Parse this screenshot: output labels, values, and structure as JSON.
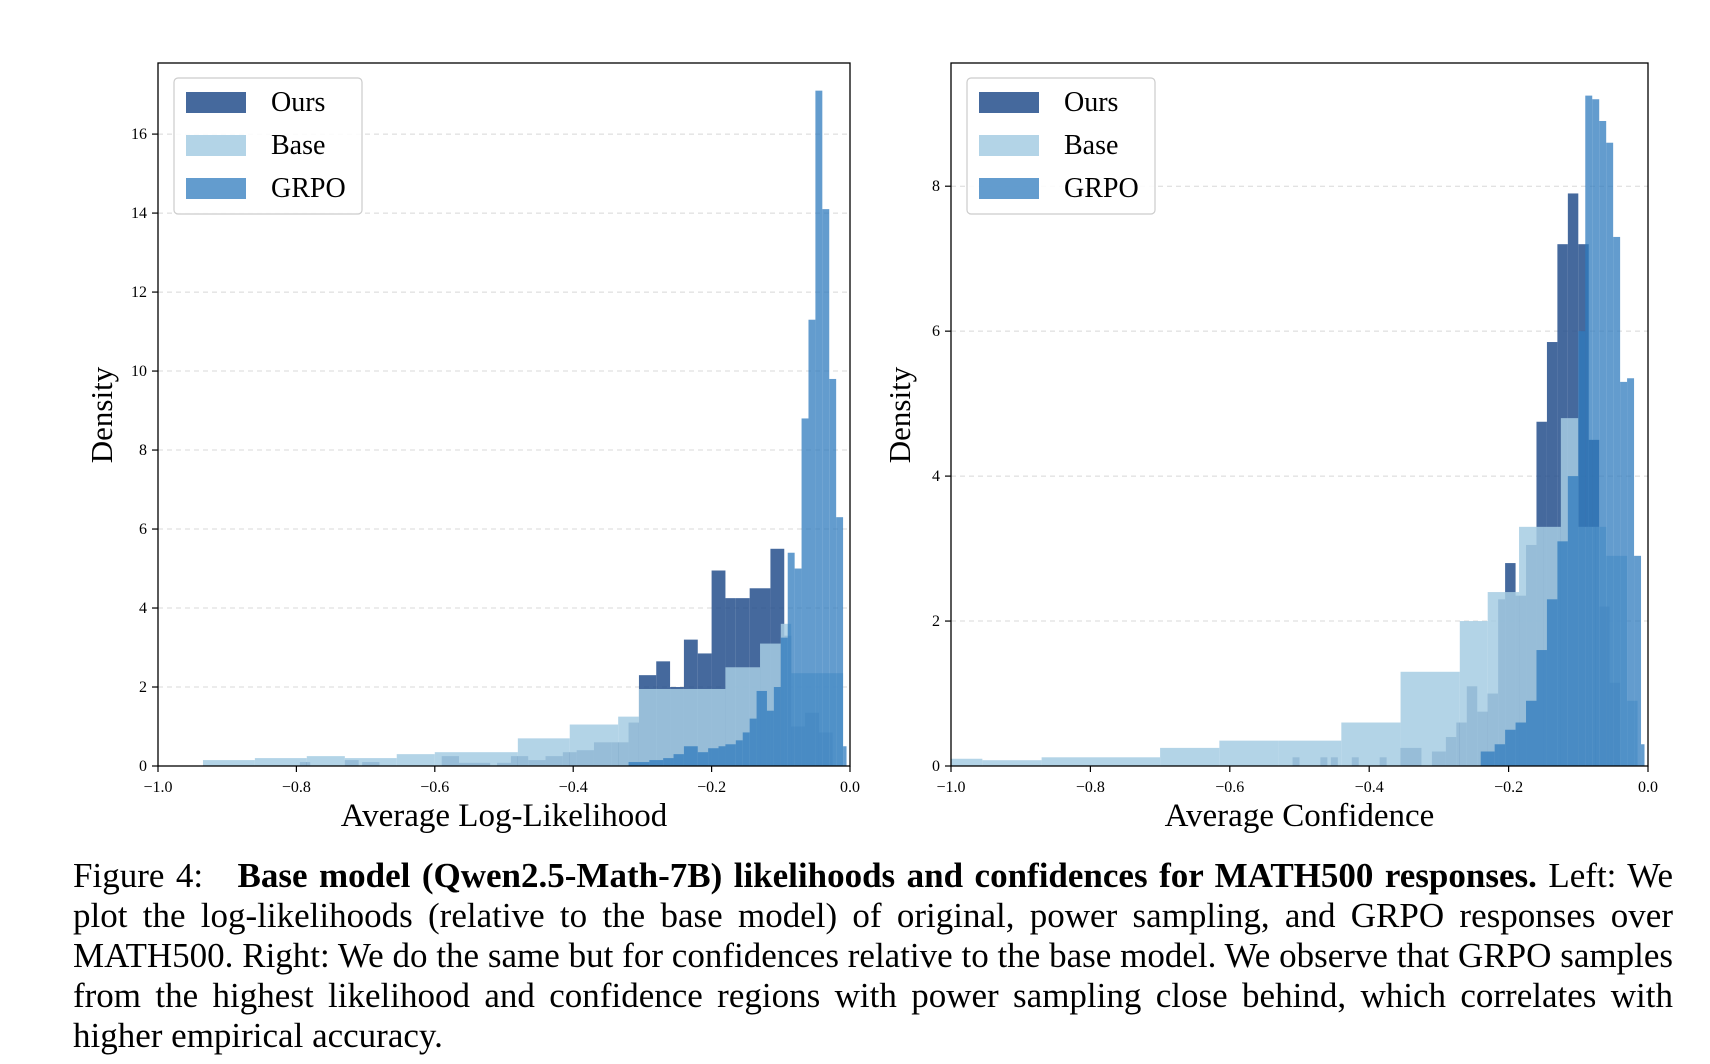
{
  "chart_data": [
    {
      "type": "histogram",
      "xlabel": "Average Log-Likelihood",
      "ylabel": "Density",
      "xlim": [
        -1.0,
        0.0
      ],
      "ylim": [
        0,
        17.8
      ],
      "xticks": [
        -1.0,
        -0.8,
        -0.6,
        -0.4,
        -0.2,
        0.0
      ],
      "xtick_labels": [
        "−1.0",
        "−0.8",
        "−0.6",
        "−0.4",
        "−0.2",
        "0.0"
      ],
      "yticks": [
        0,
        2,
        4,
        6,
        8,
        10,
        12,
        14,
        16
      ],
      "ytick_labels": [
        "0",
        "2",
        "4",
        "6",
        "8",
        "10",
        "12",
        "14",
        "16"
      ],
      "grid": "y-dashed",
      "legend": "top-left",
      "series": [
        {
          "name": "Ours",
          "color": "#254f8c",
          "opacity": 0.85,
          "bins": [
            [
              -0.795,
              -0.78,
              0.1
            ],
            [
              -0.73,
              -0.71,
              0.15
            ],
            [
              -0.705,
              -0.68,
              0.1
            ],
            [
              -0.59,
              -0.565,
              0.25
            ],
            [
              -0.565,
              -0.52,
              0.08
            ],
            [
              -0.51,
              -0.49,
              0.08
            ],
            [
              -0.49,
              -0.465,
              0.25
            ],
            [
              -0.465,
              -0.44,
              0.15
            ],
            [
              -0.44,
              -0.415,
              0.25
            ],
            [
              -0.415,
              -0.395,
              0.35
            ],
            [
              -0.395,
              -0.37,
              0.4
            ],
            [
              -0.37,
              -0.345,
              0.6
            ],
            [
              -0.345,
              -0.32,
              0.6
            ],
            [
              -0.32,
              -0.305,
              1.1
            ],
            [
              -0.305,
              -0.28,
              2.3
            ],
            [
              -0.28,
              -0.26,
              2.65
            ],
            [
              -0.26,
              -0.24,
              2.0
            ],
            [
              -0.24,
              -0.22,
              3.2
            ],
            [
              -0.22,
              -0.2,
              2.85
            ],
            [
              -0.2,
              -0.18,
              4.95
            ],
            [
              -0.18,
              -0.165,
              4.25
            ],
            [
              -0.165,
              -0.145,
              4.25
            ],
            [
              -0.145,
              -0.115,
              4.5
            ],
            [
              -0.115,
              -0.095,
              5.5
            ],
            [
              -0.095,
              -0.085,
              3.3
            ],
            [
              -0.085,
              -0.065,
              1.0
            ],
            [
              -0.065,
              -0.045,
              1.35
            ],
            [
              -0.045,
              -0.025,
              0.85
            ]
          ]
        },
        {
          "name": "Base",
          "color": "#a6cde3",
          "opacity": 0.85,
          "bins": [
            [
              -0.935,
              -0.86,
              0.15
            ],
            [
              -0.86,
              -0.785,
              0.2
            ],
            [
              -0.785,
              -0.73,
              0.25
            ],
            [
              -0.73,
              -0.655,
              0.2
            ],
            [
              -0.655,
              -0.6,
              0.3
            ],
            [
              -0.6,
              -0.48,
              0.35
            ],
            [
              -0.48,
              -0.405,
              0.7
            ],
            [
              -0.405,
              -0.335,
              1.05
            ],
            [
              -0.335,
              -0.305,
              1.25
            ],
            [
              -0.305,
              -0.18,
              1.95
            ],
            [
              -0.18,
              -0.13,
              2.5
            ],
            [
              -0.13,
              -0.1,
              3.1
            ],
            [
              -0.1,
              -0.085,
              3.6
            ],
            [
              -0.085,
              -0.045,
              2.35
            ],
            [
              -0.045,
              -0.01,
              2.35
            ]
          ]
        },
        {
          "name": "GRPO",
          "color": "#2f7bbd",
          "opacity": 0.75,
          "bins": [
            [
              -0.32,
              -0.305,
              0.1
            ],
            [
              -0.305,
              -0.29,
              0.1
            ],
            [
              -0.29,
              -0.27,
              0.15
            ],
            [
              -0.27,
              -0.255,
              0.2
            ],
            [
              -0.255,
              -0.24,
              0.3
            ],
            [
              -0.24,
              -0.22,
              0.5
            ],
            [
              -0.22,
              -0.205,
              0.35
            ],
            [
              -0.205,
              -0.19,
              0.45
            ],
            [
              -0.19,
              -0.18,
              0.5
            ],
            [
              -0.18,
              -0.165,
              0.55
            ],
            [
              -0.165,
              -0.155,
              0.65
            ],
            [
              -0.155,
              -0.145,
              0.85
            ],
            [
              -0.145,
              -0.135,
              1.2
            ],
            [
              -0.135,
              -0.12,
              1.9
            ],
            [
              -0.12,
              -0.11,
              1.4
            ],
            [
              -0.11,
              -0.1,
              2.0
            ],
            [
              -0.1,
              -0.09,
              3.25
            ],
            [
              -0.09,
              -0.08,
              5.4
            ],
            [
              -0.08,
              -0.07,
              5.0
            ],
            [
              -0.07,
              -0.06,
              8.8
            ],
            [
              -0.06,
              -0.05,
              11.3
            ],
            [
              -0.05,
              -0.04,
              17.1
            ],
            [
              -0.04,
              -0.03,
              14.1
            ],
            [
              -0.03,
              -0.02,
              9.8
            ],
            [
              -0.02,
              -0.01,
              6.3
            ],
            [
              -0.01,
              -0.005,
              0.5
            ]
          ]
        }
      ]
    },
    {
      "type": "histogram",
      "xlabel": "Average Confidence",
      "ylabel": "Density",
      "xlim": [
        -1.0,
        0.0
      ],
      "ylim": [
        0,
        9.7
      ],
      "xticks": [
        -1.0,
        -0.8,
        -0.6,
        -0.4,
        -0.2,
        0.0
      ],
      "xtick_labels": [
        "−1.0",
        "−0.8",
        "−0.6",
        "−0.4",
        "−0.2",
        "0.0"
      ],
      "yticks": [
        0,
        2,
        4,
        6,
        8
      ],
      "ytick_labels": [
        "0",
        "2",
        "4",
        "6",
        "8"
      ],
      "grid": "y-dashed",
      "legend": "top-left",
      "series": [
        {
          "name": "Ours",
          "color": "#254f8c",
          "opacity": 0.85,
          "bins": [
            [
              -0.51,
              -0.5,
              0.12
            ],
            [
              -0.47,
              -0.46,
              0.12
            ],
            [
              -0.455,
              -0.445,
              0.12
            ],
            [
              -0.425,
              -0.415,
              0.12
            ],
            [
              -0.385,
              -0.375,
              0.12
            ],
            [
              -0.355,
              -0.325,
              0.25
            ],
            [
              -0.31,
              -0.29,
              0.2
            ],
            [
              -0.29,
              -0.275,
              0.4
            ],
            [
              -0.275,
              -0.26,
              0.6
            ],
            [
              -0.26,
              -0.245,
              1.1
            ],
            [
              -0.245,
              -0.23,
              0.75
            ],
            [
              -0.23,
              -0.215,
              1.0
            ],
            [
              -0.215,
              -0.205,
              2.3
            ],
            [
              -0.205,
              -0.19,
              2.8
            ],
            [
              -0.19,
              -0.175,
              2.35
            ],
            [
              -0.175,
              -0.16,
              3.05
            ],
            [
              -0.16,
              -0.145,
              4.75
            ],
            [
              -0.145,
              -0.13,
              5.85
            ],
            [
              -0.13,
              -0.115,
              7.2
            ],
            [
              -0.115,
              -0.1,
              7.9
            ],
            [
              -0.1,
              -0.085,
              7.2
            ],
            [
              -0.085,
              -0.07,
              4.5
            ],
            [
              -0.07,
              -0.055,
              2.2
            ],
            [
              -0.055,
              -0.04,
              1.15
            ]
          ]
        },
        {
          "name": "Base",
          "color": "#a6cde3",
          "opacity": 0.85,
          "bins": [
            [
              -1.0,
              -0.955,
              0.1
            ],
            [
              -0.955,
              -0.87,
              0.08
            ],
            [
              -0.87,
              -0.7,
              0.12
            ],
            [
              -0.7,
              -0.615,
              0.25
            ],
            [
              -0.615,
              -0.53,
              0.35
            ],
            [
              -0.53,
              -0.44,
              0.35
            ],
            [
              -0.44,
              -0.355,
              0.6
            ],
            [
              -0.355,
              -0.27,
              1.3
            ],
            [
              -0.27,
              -0.23,
              2.0
            ],
            [
              -0.23,
              -0.185,
              2.4
            ],
            [
              -0.185,
              -0.15,
              3.3
            ],
            [
              -0.15,
              -0.125,
              3.3
            ],
            [
              -0.125,
              -0.1,
              4.8
            ],
            [
              -0.1,
              -0.075,
              3.3
            ],
            [
              -0.075,
              -0.06,
              3.3
            ],
            [
              -0.06,
              -0.03,
              2.9
            ],
            [
              -0.03,
              -0.015,
              0.9
            ]
          ]
        },
        {
          "name": "GRPO",
          "color": "#2f7bbd",
          "opacity": 0.75,
          "bins": [
            [
              -0.24,
              -0.22,
              0.2
            ],
            [
              -0.22,
              -0.205,
              0.3
            ],
            [
              -0.205,
              -0.19,
              0.5
            ],
            [
              -0.19,
              -0.175,
              0.6
            ],
            [
              -0.175,
              -0.16,
              0.9
            ],
            [
              -0.16,
              -0.145,
              1.6
            ],
            [
              -0.145,
              -0.13,
              2.3
            ],
            [
              -0.13,
              -0.115,
              3.1
            ],
            [
              -0.115,
              -0.1,
              4.0
            ],
            [
              -0.1,
              -0.09,
              6.0
            ],
            [
              -0.09,
              -0.08,
              9.25
            ],
            [
              -0.08,
              -0.07,
              9.2
            ],
            [
              -0.07,
              -0.06,
              8.9
            ],
            [
              -0.06,
              -0.05,
              8.6
            ],
            [
              -0.05,
              -0.04,
              7.3
            ],
            [
              -0.04,
              -0.03,
              5.3
            ],
            [
              -0.03,
              -0.02,
              5.35
            ],
            [
              -0.02,
              -0.01,
              2.9
            ],
            [
              -0.01,
              -0.005,
              0.3
            ]
          ]
        }
      ]
    }
  ],
  "caption": {
    "label": "Figure 4:",
    "bold": "Base model (Qwen2.5-Math-7B) likelihoods and confidences for MATH500 responses.",
    "text": "Left: We plot the log-likelihoods (relative to the base model) of original, power sampling, and GRPO responses over MATH500. Right: We do the same but for confidences relative to the base model. We observe that GRPO samples from the highest likelihood and confidence regions with power sampling close behind, which correlates with higher empirical accuracy."
  }
}
